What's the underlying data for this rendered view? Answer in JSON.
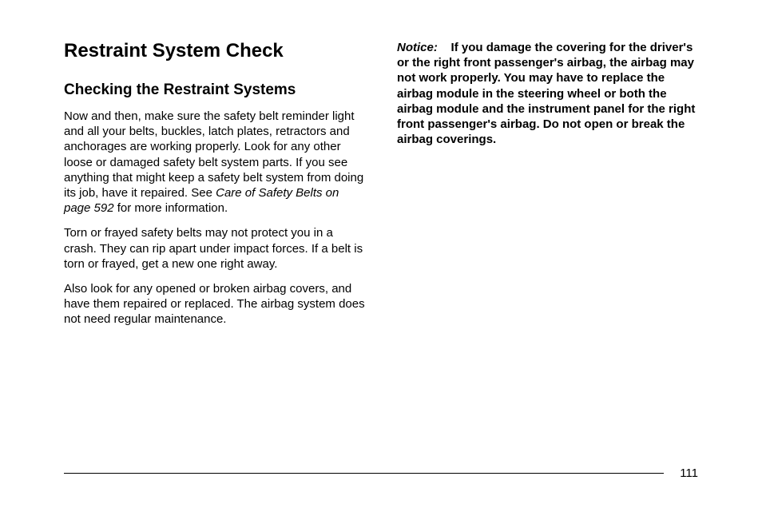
{
  "page": {
    "number": "111"
  },
  "left": {
    "heading_main": "Restraint System Check",
    "heading_sub": "Checking the Restraint Systems",
    "p1_a": "Now and then, make sure the safety belt reminder light and all your belts, buckles, latch plates, retractors and anchorages are working properly. Look for any other loose or damaged safety belt system parts. If you see anything that might keep a safety belt system from doing its job, have it repaired. See ",
    "p1_ref": "Care of Safety Belts on page 592",
    "p1_b": " for more information.",
    "p2": "Torn or frayed safety belts may not protect you in a crash. They can rip apart under impact forces. If a belt is torn or frayed, get a new one right away.",
    "p3": "Also look for any opened or broken airbag covers, and have them repaired or replaced. The airbag system does not need regular maintenance."
  },
  "right": {
    "notice_label": "Notice:",
    "notice_body": "If you damage the covering for the driver's or the right front passenger's airbag, the airbag may not work properly. You may have to replace the airbag module in the steering wheel or both the airbag module and the instrument panel for the right front passenger's airbag. Do not open or break the airbag coverings."
  }
}
